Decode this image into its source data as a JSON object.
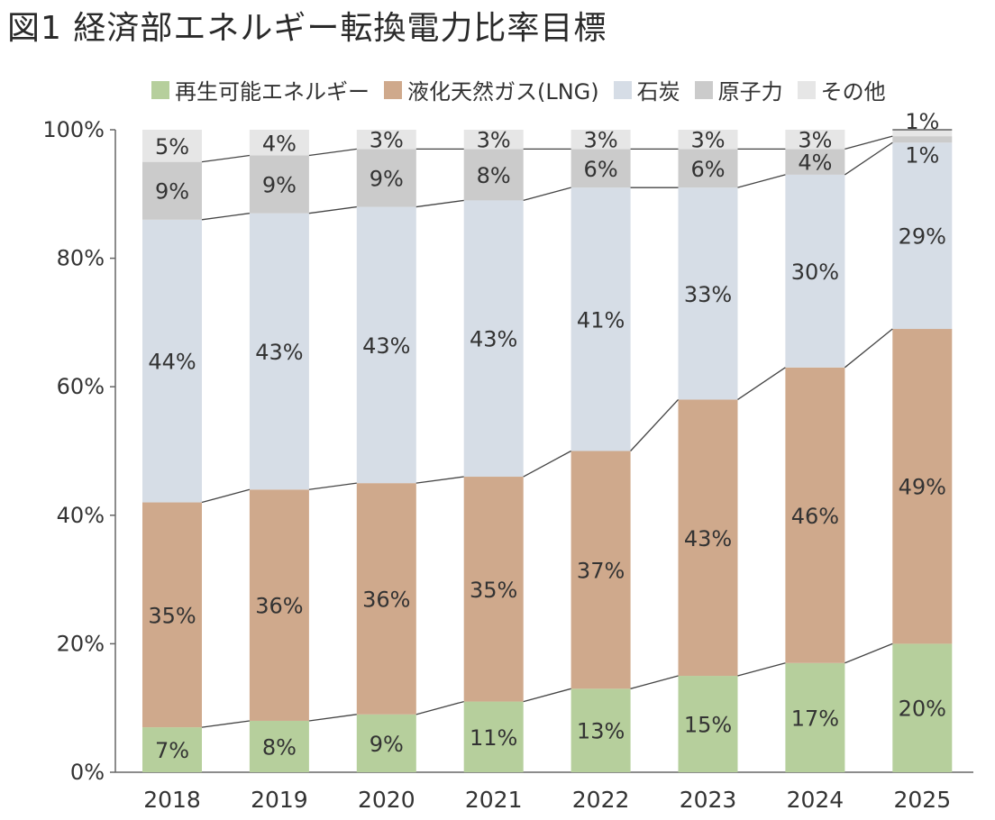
{
  "title": "図1 経済部エネルギー転換電力比率目標",
  "colors": {
    "renewable": "#b6cf9c",
    "lng": "#cfa98c",
    "coal": "#d6dde6",
    "nuclear": "#cbcbcb",
    "other": "#e6e6e6",
    "axis": "#666666",
    "connector": "#444444",
    "label": "#333333"
  },
  "chart_data": {
    "type": "bar",
    "stacked": true,
    "categories": [
      "2018",
      "2019",
      "2020",
      "2021",
      "2022",
      "2023",
      "2024",
      "2025"
    ],
    "series": [
      {
        "name": "再生可能エネルギー",
        "key": "renewable",
        "values": [
          7,
          8,
          9,
          11,
          13,
          15,
          17,
          20
        ]
      },
      {
        "name": "液化天然ガス(LNG)",
        "key": "lng",
        "values": [
          35,
          36,
          36,
          35,
          37,
          43,
          46,
          49
        ]
      },
      {
        "name": "石炭",
        "key": "coal",
        "values": [
          44,
          43,
          43,
          43,
          41,
          33,
          30,
          29
        ]
      },
      {
        "name": "原子力",
        "key": "nuclear",
        "values": [
          9,
          9,
          9,
          8,
          6,
          6,
          4,
          1
        ]
      },
      {
        "name": "その他",
        "key": "other",
        "values": [
          5,
          4,
          3,
          3,
          3,
          3,
          3,
          1
        ]
      }
    ],
    "y_ticks": [
      "0%",
      "20%",
      "40%",
      "60%",
      "80%",
      "100%"
    ],
    "ylim": [
      0,
      100
    ],
    "value_suffix": "%",
    "legend_position": "top",
    "grid": false
  }
}
